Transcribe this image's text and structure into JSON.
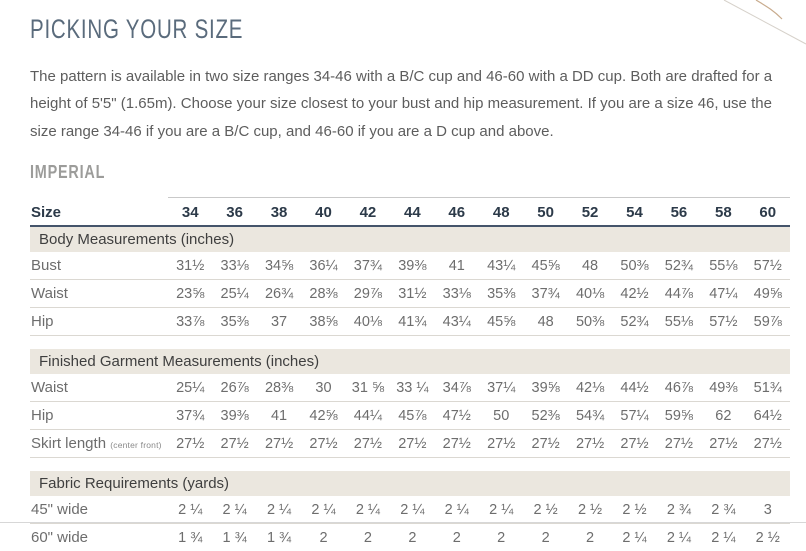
{
  "page": {
    "title": "PICKING YOUR SIZE",
    "intro": "The pattern is available in two size ranges 34-46 with a B/C cup and 46-60 with a DD cup. Both are drafted for a height of 5'5\" (1.65m). Choose your size closest to your bust and hip measurement. If you are a size 46, use the size range 34-46 if you are a B/C cup, and 46-60 if you are a D cup and above.",
    "units_heading": "IMPERIAL"
  },
  "colors": {
    "title": "#5a6b7c",
    "units_heading": "#9c9c9a",
    "header_text": "#2c3a49",
    "header_rule": "#44546a",
    "section_band_bg": "#ebe7df",
    "body_text": "#5d5d5d",
    "table_text": "#6d6d6d",
    "row_separator": "#dbd8d2"
  },
  "table": {
    "size_label": "Size",
    "sizes": [
      "34",
      "36",
      "38",
      "40",
      "42",
      "44",
      "46",
      "48",
      "50",
      "52",
      "54",
      "56",
      "58",
      "60"
    ],
    "sections": [
      {
        "heading": "Body Measurements (inches)",
        "rows": [
          {
            "label": "Bust",
            "note": "",
            "values": [
              "31½",
              "33⅛",
              "34⅝",
              "36¼",
              "37¾",
              "39⅜",
              "41",
              "43¼",
              "45⅝",
              "48",
              "50⅜",
              "52¾",
              "55⅛",
              "57½"
            ]
          },
          {
            "label": "Waist",
            "note": "",
            "values": [
              "23⅝",
              "25¼",
              "26¾",
              "28⅜",
              "29⅞",
              "31½",
              "33⅛",
              "35⅜",
              "37¾",
              "40⅛",
              "42½",
              "44⅞",
              "47¼",
              "49⅝"
            ]
          },
          {
            "label": "Hip",
            "note": "",
            "values": [
              "33⅞",
              "35⅜",
              "37",
              "38⅝",
              "40⅛",
              "41¾",
              "43¼",
              "45⅝",
              "48",
              "50⅜",
              "52¾",
              "55⅛",
              "57½",
              "59⅞"
            ]
          }
        ]
      },
      {
        "heading": "Finished Garment Measurements (inches)",
        "rows": [
          {
            "label": "Waist",
            "note": "",
            "values": [
              "25¼",
              "26⅞",
              "28⅜",
              "30",
              "31 ⅝",
              "33 ¼",
              "34⅞",
              "37¼",
              "39⅝",
              "42⅛",
              "44½",
              "46⅞",
              "49⅜",
              "51¾"
            ]
          },
          {
            "label": "Hip",
            "note": "",
            "values": [
              "37¾",
              "39⅜",
              "41",
              "42⅝",
              "44¼",
              "45⅞",
              "47½",
              "50",
              "52⅜",
              "54¾",
              "57¼",
              "59⅝",
              "62",
              "64½"
            ]
          },
          {
            "label": "Skirt length",
            "note": "(center front)",
            "values": [
              "27½",
              "27½",
              "27½",
              "27½",
              "27½",
              "27½",
              "27½",
              "27½",
              "27½",
              "27½",
              "27½",
              "27½",
              "27½",
              "27½"
            ]
          }
        ]
      },
      {
        "heading": "Fabric Requirements (yards)",
        "rows": [
          {
            "label": "45\" wide",
            "note": "",
            "values": [
              "2 ¼",
              "2 ¼",
              "2 ¼",
              "2 ¼",
              "2 ¼",
              "2 ¼",
              "2 ¼",
              "2 ¼",
              "2 ½",
              "2 ½",
              "2 ½",
              "2 ¾",
              "2 ¾",
              "3"
            ]
          },
          {
            "label": "60\" wide",
            "note": "",
            "values": [
              "1 ¾",
              "1 ¾",
              "1 ¾",
              "2",
              "2",
              "2",
              "2",
              "2",
              "2",
              "2",
              "2 ¼",
              "2 ¼",
              "2 ¼",
              "2 ½"
            ]
          }
        ]
      }
    ]
  }
}
